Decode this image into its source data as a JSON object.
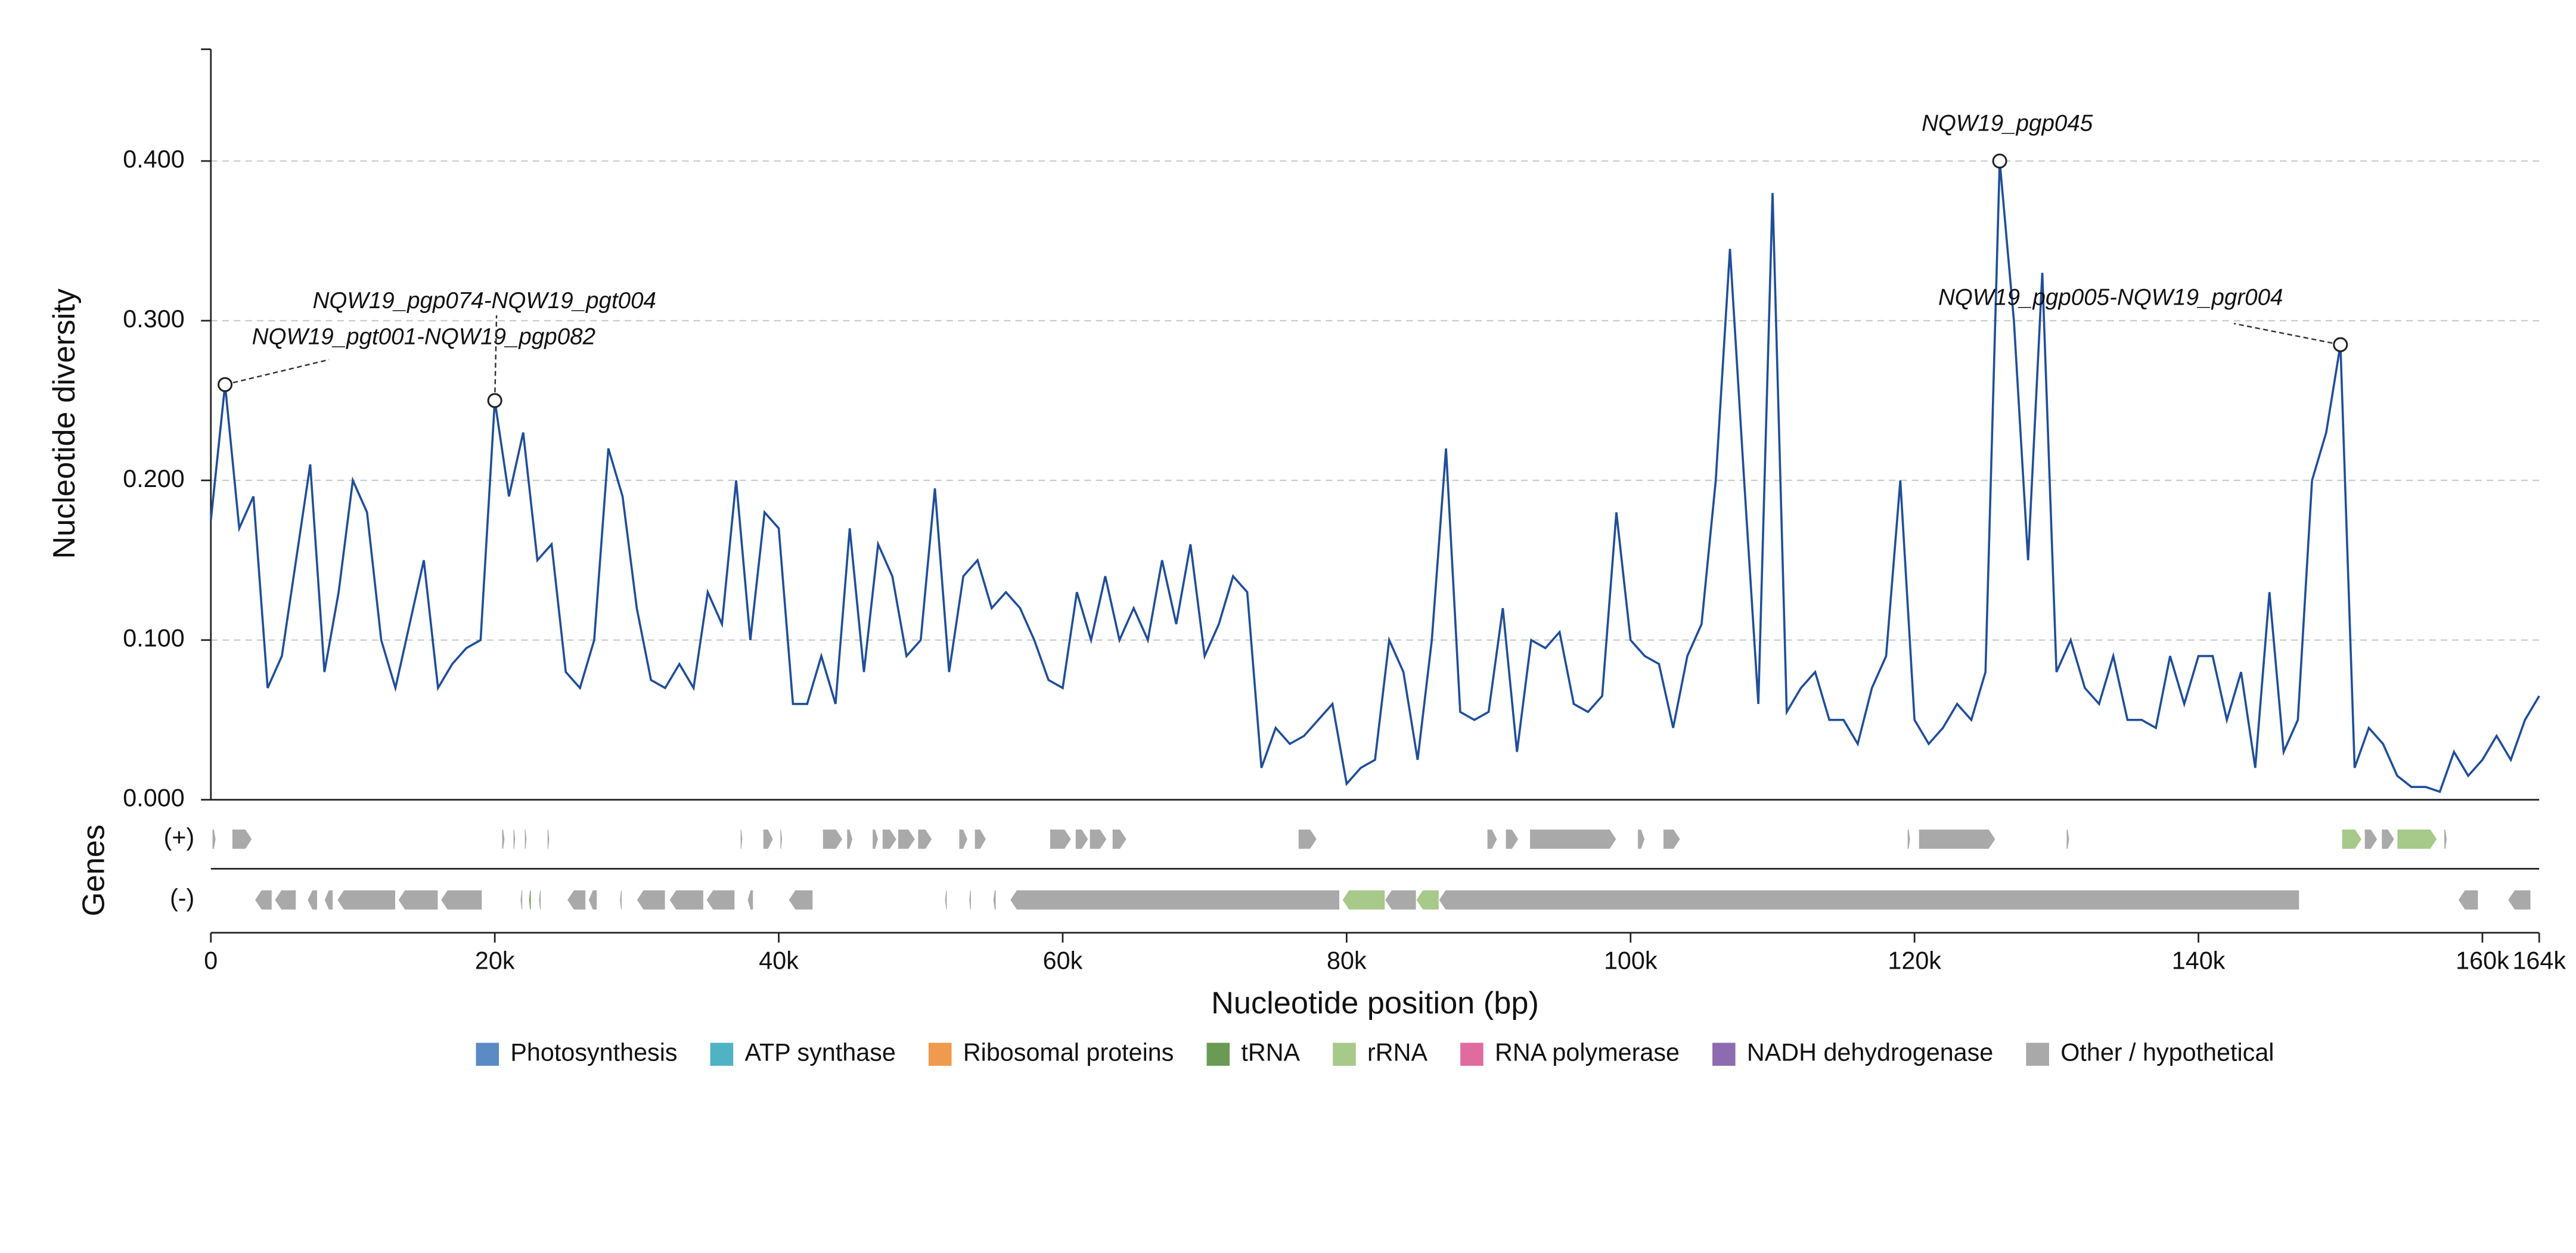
{
  "chart_data": {
    "type": "line",
    "y_label": "Nucleotide diversity",
    "x_label": "Nucleotide position (bp)",
    "gene_track_label": "Genes",
    "xlim": [
      0,
      164000
    ],
    "ylim": [
      0,
      0.47
    ],
    "xticks": [
      {
        "value": 0,
        "label": "0"
      },
      {
        "value": 20000,
        "label": "20k"
      },
      {
        "value": 40000,
        "label": "40k"
      },
      {
        "value": 60000,
        "label": "60k"
      },
      {
        "value": 80000,
        "label": "80k"
      },
      {
        "value": 100000,
        "label": "100k"
      },
      {
        "value": 120000,
        "label": "120k"
      },
      {
        "value": 140000,
        "label": "140k"
      },
      {
        "value": 160000,
        "label": "160k"
      },
      {
        "value": 164000,
        "label": "164k"
      }
    ],
    "yticks": [
      {
        "value": 0,
        "label": "0.000"
      },
      {
        "value": 0.1,
        "label": "0.100"
      },
      {
        "value": 0.2,
        "label": "0.200"
      },
      {
        "value": 0.3,
        "label": "0.300"
      },
      {
        "value": 0.4,
        "label": "0.400"
      }
    ],
    "grid": true,
    "series": [
      {
        "color": "#1f4e9a",
        "x": [
          0,
          1000,
          2000,
          3000,
          4000,
          5000,
          6000,
          7000,
          8000,
          9000,
          10000,
          11000,
          12000,
          13000,
          14000,
          15000,
          16000,
          17000,
          18000,
          19000,
          20000,
          21000,
          22000,
          23000,
          24000,
          25000,
          26000,
          27000,
          28000,
          29000,
          30000,
          31000,
          32000,
          33000,
          34000,
          35000,
          36000,
          37000,
          38000,
          39000,
          40000,
          41000,
          42000,
          43000,
          44000,
          45000,
          46000,
          47000,
          48000,
          49000,
          50000,
          51000,
          52000,
          53000,
          54000,
          55000,
          56000,
          57000,
          58000,
          59000,
          60000,
          61000,
          62000,
          63000,
          64000,
          65000,
          66000,
          67000,
          68000,
          69000,
          70000,
          71000,
          72000,
          73000,
          74000,
          75000,
          76000,
          77000,
          78000,
          79000,
          80000,
          81000,
          82000,
          83000,
          84000,
          85000,
          86000,
          87000,
          88000,
          89000,
          90000,
          91000,
          92000,
          93000,
          94000,
          95000,
          96000,
          97000,
          98000,
          99000,
          100000,
          101000,
          102000,
          103000,
          104000,
          105000,
          106000,
          107000,
          108000,
          109000,
          110000,
          111000,
          112000,
          113000,
          114000,
          115000,
          116000,
          117000,
          118000,
          119000,
          120000,
          121000,
          122000,
          123000,
          124000,
          125000,
          126000,
          127000,
          128000,
          129000,
          130000,
          131000,
          132000,
          133000,
          134000,
          135000,
          136000,
          137000,
          138000,
          139000,
          140000,
          141000,
          142000,
          143000,
          144000,
          145000,
          146000,
          147000,
          148000,
          149000,
          150000,
          151000,
          152000,
          153000,
          154000,
          155000,
          156000,
          157000,
          158000,
          159000,
          160000,
          161000,
          162000,
          163000,
          164000
        ],
        "values": [
          0.175,
          0.26,
          0.17,
          0.19,
          0.07,
          0.09,
          0.15,
          0.21,
          0.08,
          0.13,
          0.2,
          0.18,
          0.1,
          0.07,
          0.11,
          0.15,
          0.07,
          0.085,
          0.095,
          0.1,
          0.25,
          0.19,
          0.23,
          0.15,
          0.16,
          0.08,
          0.07,
          0.1,
          0.22,
          0.19,
          0.12,
          0.075,
          0.07,
          0.085,
          0.07,
          0.13,
          0.11,
          0.2,
          0.1,
          0.18,
          0.17,
          0.06,
          0.06,
          0.09,
          0.06,
          0.17,
          0.08,
          0.16,
          0.14,
          0.09,
          0.1,
          0.195,
          0.08,
          0.14,
          0.15,
          0.12,
          0.13,
          0.12,
          0.1,
          0.075,
          0.07,
          0.13,
          0.1,
          0.14,
          0.1,
          0.12,
          0.1,
          0.15,
          0.11,
          0.16,
          0.09,
          0.11,
          0.14,
          0.13,
          0.02,
          0.045,
          0.035,
          0.04,
          0.05,
          0.06,
          0.01,
          0.02,
          0.025,
          0.1,
          0.08,
          0.025,
          0.1,
          0.22,
          0.055,
          0.05,
          0.055,
          0.12,
          0.03,
          0.1,
          0.095,
          0.105,
          0.06,
          0.055,
          0.065,
          0.18,
          0.1,
          0.09,
          0.085,
          0.045,
          0.09,
          0.11,
          0.2,
          0.345,
          0.2,
          0.06,
          0.38,
          0.055,
          0.07,
          0.08,
          0.05,
          0.05,
          0.035,
          0.07,
          0.09,
          0.2,
          0.05,
          0.035,
          0.045,
          0.06,
          0.05,
          0.08,
          0.4,
          0.3,
          0.15,
          0.33,
          0.08,
          0.1,
          0.07,
          0.06,
          0.09,
          0.05,
          0.05,
          0.045,
          0.09,
          0.06,
          0.09,
          0.09,
          0.05,
          0.08,
          0.02,
          0.13,
          0.03,
          0.05,
          0.2,
          0.23,
          0.285,
          0.02,
          0.045,
          0.035,
          0.015,
          0.008,
          0.008,
          0.005,
          0.03,
          0.015,
          0.025,
          0.04,
          0.025,
          0.05,
          0.065
        ]
      }
    ],
    "annotations": [
      {
        "text": "NQW19_pgt001-NQW19_pgp082",
        "x": 1000,
        "y": 0.26
      },
      {
        "text": "NQW19_pgp074-NQW19_pgt004",
        "x": 20000,
        "y": 0.25
      },
      {
        "text": "NQW19_pgp045",
        "x": 126000,
        "y": 0.4
      },
      {
        "text": "NQW19_pgp005-NQW19_pgr004",
        "x": 150000,
        "y": 0.285
      }
    ],
    "strands": [
      "(+)",
      "(-)"
    ],
    "gene_categories": [
      {
        "name": "Photosynthesis",
        "color": "#5b8bc5"
      },
      {
        "name": "ATP synthase",
        "color": "#4fb3c4"
      },
      {
        "name": "Ribosomal proteins",
        "color": "#f09a50"
      },
      {
        "name": "tRNA",
        "color": "#6b9a55"
      },
      {
        "name": "rRNA",
        "color": "#a7c98a"
      },
      {
        "name": "RNA polymerase",
        "color": "#e06c9f"
      },
      {
        "name": "NADH dehydrogenase",
        "color": "#8c6bb1"
      },
      {
        "name": "Other / hypothetical",
        "color": "#a9a9a9"
      }
    ],
    "genes": [
      {
        "start": 100,
        "end": 350,
        "strand": "(+)",
        "category": "Other / hypothetical"
      },
      {
        "start": 1500,
        "end": 2900,
        "strand": "(+)",
        "category": "Other / hypothetical"
      },
      {
        "start": 20500,
        "end": 20700,
        "strand": "(+)",
        "category": "Other / hypothetical"
      },
      {
        "start": 21300,
        "end": 21450,
        "strand": "(+)",
        "category": "Other / hypothetical"
      },
      {
        "start": 22100,
        "end": 22250,
        "strand": "(+)",
        "category": "Other / hypothetical"
      },
      {
        "start": 23700,
        "end": 23850,
        "strand": "(+)",
        "category": "Other / hypothetical"
      },
      {
        "start": 37300,
        "end": 37450,
        "strand": "(+)",
        "category": "Other / hypothetical"
      },
      {
        "start": 38900,
        "end": 39600,
        "strand": "(+)",
        "category": "Other / hypothetical"
      },
      {
        "start": 40100,
        "end": 40250,
        "strand": "(+)",
        "category": "Other / hypothetical"
      },
      {
        "start": 43100,
        "end": 44500,
        "strand": "(+)",
        "category": "Other / hypothetical"
      },
      {
        "start": 44800,
        "end": 45200,
        "strand": "(+)",
        "category": "Other / hypothetical"
      },
      {
        "start": 46600,
        "end": 47000,
        "strand": "(+)",
        "category": "Other / hypothetical"
      },
      {
        "start": 47300,
        "end": 48300,
        "strand": "(+)",
        "category": "Other / hypothetical"
      },
      {
        "start": 48400,
        "end": 49600,
        "strand": "(+)",
        "category": "Other / hypothetical"
      },
      {
        "start": 49800,
        "end": 50800,
        "strand": "(+)",
        "category": "Other / hypothetical"
      },
      {
        "start": 52700,
        "end": 53300,
        "strand": "(+)",
        "category": "Other / hypothetical"
      },
      {
        "start": 53800,
        "end": 54600,
        "strand": "(+)",
        "category": "Other / hypothetical"
      },
      {
        "start": 59100,
        "end": 60600,
        "strand": "(+)",
        "category": "Other / hypothetical"
      },
      {
        "start": 60900,
        "end": 61800,
        "strand": "(+)",
        "category": "Other / hypothetical"
      },
      {
        "start": 61900,
        "end": 63100,
        "strand": "(+)",
        "category": "Other / hypothetical"
      },
      {
        "start": 63500,
        "end": 64500,
        "strand": "(+)",
        "category": "Other / hypothetical"
      },
      {
        "start": 76600,
        "end": 77900,
        "strand": "(+)",
        "category": "Other / hypothetical"
      },
      {
        "start": 89900,
        "end": 90600,
        "strand": "(+)",
        "category": "Other / hypothetical"
      },
      {
        "start": 91200,
        "end": 92100,
        "strand": "(+)",
        "category": "Other / hypothetical"
      },
      {
        "start": 92900,
        "end": 99000,
        "strand": "(+)",
        "category": "Other / hypothetical"
      },
      {
        "start": 100500,
        "end": 101000,
        "strand": "(+)",
        "category": "Other / hypothetical"
      },
      {
        "start": 102300,
        "end": 103500,
        "strand": "(+)",
        "category": "Other / hypothetical"
      },
      {
        "start": 119500,
        "end": 119700,
        "strand": "(+)",
        "category": "Other / hypothetical"
      },
      {
        "start": 120300,
        "end": 125700,
        "strand": "(+)",
        "category": "Other / hypothetical"
      },
      {
        "start": 130700,
        "end": 130900,
        "strand": "(+)",
        "category": "Other / hypothetical"
      },
      {
        "start": 150100,
        "end": 151500,
        "strand": "(+)",
        "category": "rRNA"
      },
      {
        "start": 151700,
        "end": 152600,
        "strand": "(+)",
        "category": "Other / hypothetical"
      },
      {
        "start": 152900,
        "end": 153800,
        "strand": "(+)",
        "category": "Other / hypothetical"
      },
      {
        "start": 154000,
        "end": 156800,
        "strand": "(+)",
        "category": "rRNA"
      },
      {
        "start": 157300,
        "end": 157500,
        "strand": "(+)",
        "category": "Other / hypothetical"
      },
      {
        "start": 3100,
        "end": 4300,
        "strand": "(-)",
        "category": "Other / hypothetical"
      },
      {
        "start": 4500,
        "end": 6000,
        "strand": "(-)",
        "category": "Other / hypothetical"
      },
      {
        "start": 6800,
        "end": 7500,
        "strand": "(-)",
        "category": "Other / hypothetical"
      },
      {
        "start": 8000,
        "end": 8600,
        "strand": "(-)",
        "category": "Other / hypothetical"
      },
      {
        "start": 8900,
        "end": 13000,
        "strand": "(-)",
        "category": "Other / hypothetical"
      },
      {
        "start": 13200,
        "end": 16000,
        "strand": "(-)",
        "category": "Other / hypothetical"
      },
      {
        "start": 16200,
        "end": 19100,
        "strand": "(-)",
        "category": "Other / hypothetical"
      },
      {
        "start": 21800,
        "end": 21950,
        "strand": "(-)",
        "category": "Other / hypothetical"
      },
      {
        "start": 22400,
        "end": 22550,
        "strand": "(-)",
        "category": "tRNA"
      },
      {
        "start": 23100,
        "end": 23250,
        "strand": "(-)",
        "category": "Other / hypothetical"
      },
      {
        "start": 25100,
        "end": 26400,
        "strand": "(-)",
        "category": "Other / hypothetical"
      },
      {
        "start": 26600,
        "end": 27200,
        "strand": "(-)",
        "category": "Other / hypothetical"
      },
      {
        "start": 28800,
        "end": 28950,
        "strand": "(-)",
        "category": "Other / hypothetical"
      },
      {
        "start": 30000,
        "end": 32000,
        "strand": "(-)",
        "category": "Other / hypothetical"
      },
      {
        "start": 32300,
        "end": 34700,
        "strand": "(-)",
        "category": "Other / hypothetical"
      },
      {
        "start": 34900,
        "end": 36900,
        "strand": "(-)",
        "category": "Other / hypothetical"
      },
      {
        "start": 37800,
        "end": 38200,
        "strand": "(-)",
        "category": "Other / hypothetical"
      },
      {
        "start": 40700,
        "end": 42400,
        "strand": "(-)",
        "category": "Other / hypothetical"
      },
      {
        "start": 51700,
        "end": 51850,
        "strand": "(-)",
        "category": "Other / hypothetical"
      },
      {
        "start": 53400,
        "end": 53550,
        "strand": "(-)",
        "category": "Other / hypothetical"
      },
      {
        "start": 55100,
        "end": 55300,
        "strand": "(-)",
        "category": "Other / hypothetical"
      },
      {
        "start": 56300,
        "end": 79500,
        "strand": "(-)",
        "category": "Other / hypothetical"
      },
      {
        "start": 79700,
        "end": 82700,
        "strand": "(-)",
        "category": "rRNA"
      },
      {
        "start": 82700,
        "end": 84900,
        "strand": "(-)",
        "category": "Other / hypothetical"
      },
      {
        "start": 84900,
        "end": 86500,
        "strand": "(-)",
        "category": "rRNA"
      },
      {
        "start": 86500,
        "end": 147100,
        "strand": "(-)",
        "category": "Other / hypothetical"
      },
      {
        "start": 158300,
        "end": 159700,
        "strand": "(-)",
        "category": "Other / hypothetical"
      },
      {
        "start": 161800,
        "end": 163400,
        "strand": "(-)",
        "category": "Other / hypothetical"
      }
    ]
  }
}
